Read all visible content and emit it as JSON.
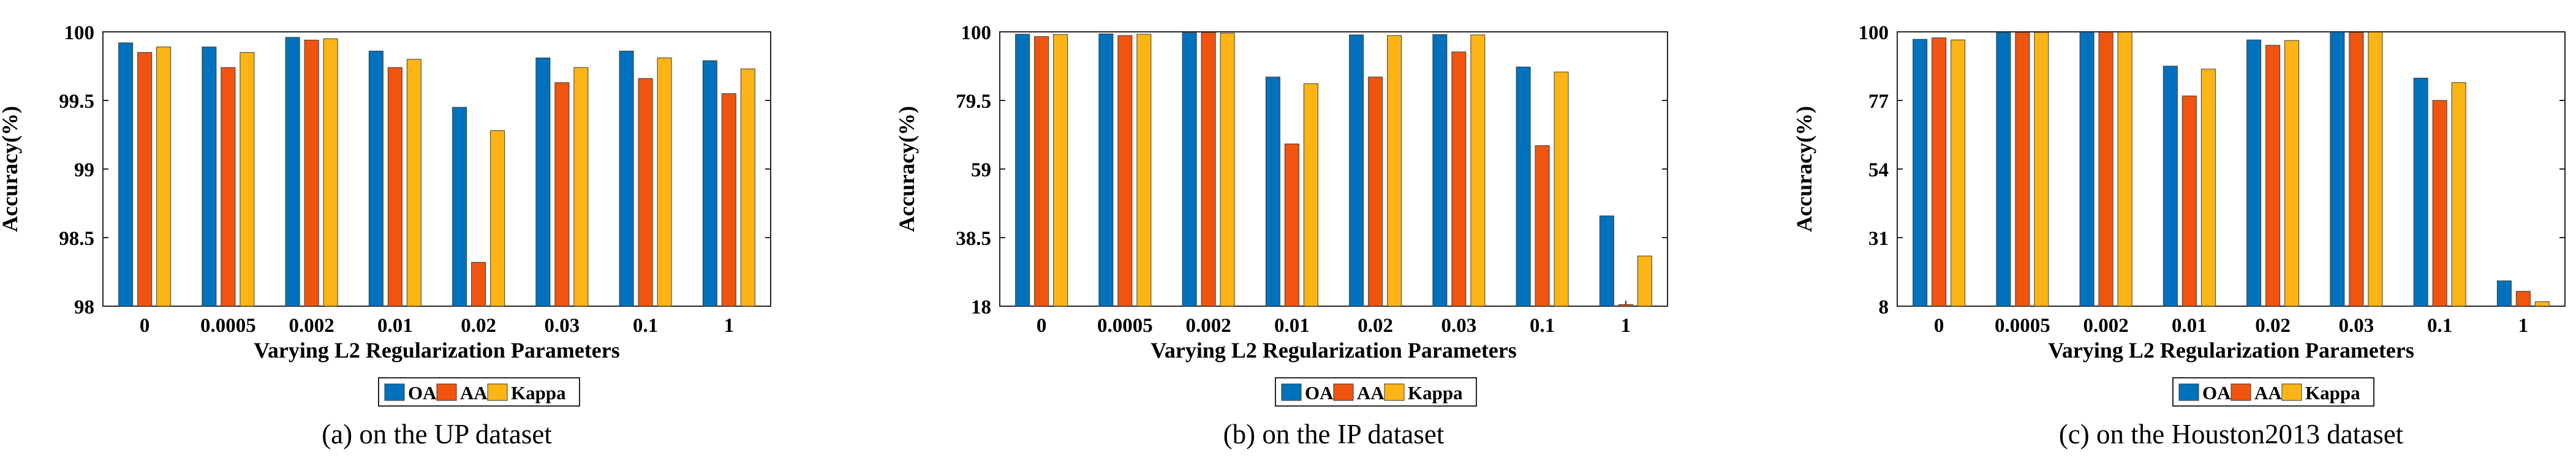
{
  "colors": {
    "OA": "#0072BD",
    "AA": "#F0540F",
    "Kappa": "#FDB515"
  },
  "chart_data": [
    {
      "type": "bar",
      "caption": "(a) on the UP dataset",
      "xlabel": "Varying L2 Regularization Parameters",
      "ylabel": "Accuracy(%)",
      "categories": [
        "0",
        "0.0005",
        "0.002",
        "0.01",
        "0.02",
        "0.03",
        "0.1",
        "1"
      ],
      "yticks": [
        98,
        98.5,
        99,
        99.5,
        100
      ],
      "ytick_labels": [
        "98",
        "98.5",
        "99",
        "99.5",
        "100"
      ],
      "ylim": [
        98,
        100
      ],
      "series": [
        {
          "name": "OA",
          "values": [
            99.92,
            99.89,
            99.96,
            99.86,
            99.45,
            99.81,
            99.86,
            99.79
          ]
        },
        {
          "name": "AA",
          "values": [
            99.85,
            99.74,
            99.94,
            99.74,
            98.32,
            99.63,
            99.66,
            99.55
          ]
        },
        {
          "name": "Kappa",
          "values": [
            99.89,
            99.85,
            99.95,
            99.8,
            99.28,
            99.74,
            99.81,
            99.73
          ]
        }
      ],
      "legend": [
        "OA",
        "AA",
        "Kappa"
      ]
    },
    {
      "type": "bar",
      "caption": "(b) on the IP dataset",
      "xlabel": "Varying L2 Regularization Parameters",
      "ylabel": "Accuracy(%)",
      "categories": [
        "0",
        "0.0005",
        "0.002",
        "0.01",
        "0.02",
        "0.03",
        "0.1",
        "1"
      ],
      "yticks": [
        18,
        38.5,
        59,
        79.5,
        100
      ],
      "ytick_labels": [
        "18",
        "38.5",
        "59",
        "79.5",
        "100"
      ],
      "ylim": [
        18,
        100
      ],
      "series": [
        {
          "name": "OA",
          "values": [
            99.3,
            99.4,
            99.7,
            86.5,
            99.1,
            99.2,
            89.5,
            45.0
          ]
        },
        {
          "name": "AA",
          "values": [
            98.6,
            98.9,
            99.8,
            66.5,
            86.5,
            94.0,
            66.0,
            18.5
          ]
        },
        {
          "name": "Kappa",
          "values": [
            99.2,
            99.3,
            99.6,
            84.5,
            98.9,
            99.1,
            88.0,
            33.0
          ]
        }
      ],
      "legend": [
        "OA",
        "AA",
        "Kappa"
      ]
    },
    {
      "type": "bar",
      "caption": "(c) on the Houston2013 dataset",
      "xlabel": "Varying L2 Regularization Parameters",
      "ylabel": "Accuracy(%)",
      "categories": [
        "0",
        "0.0005",
        "0.002",
        "0.01",
        "0.02",
        "0.03",
        "0.1",
        "1"
      ],
      "yticks": [
        8,
        31,
        54,
        77,
        100
      ],
      "ytick_labels": [
        "8",
        "31",
        "54",
        "77",
        "100"
      ],
      "ylim": [
        8,
        100
      ],
      "series": [
        {
          "name": "OA",
          "values": [
            97.5,
            99.8,
            99.9,
            88.5,
            97.3,
            99.9,
            84.5,
            16.5
          ]
        },
        {
          "name": "AA",
          "values": [
            98.0,
            99.8,
            99.9,
            78.5,
            95.5,
            99.8,
            77.0,
            13.0
          ]
        },
        {
          "name": "Kappa",
          "values": [
            97.3,
            99.8,
            99.9,
            87.5,
            97.1,
            99.9,
            83.0,
            9.5
          ]
        }
      ],
      "legend": [
        "OA",
        "AA",
        "Kappa"
      ]
    }
  ]
}
